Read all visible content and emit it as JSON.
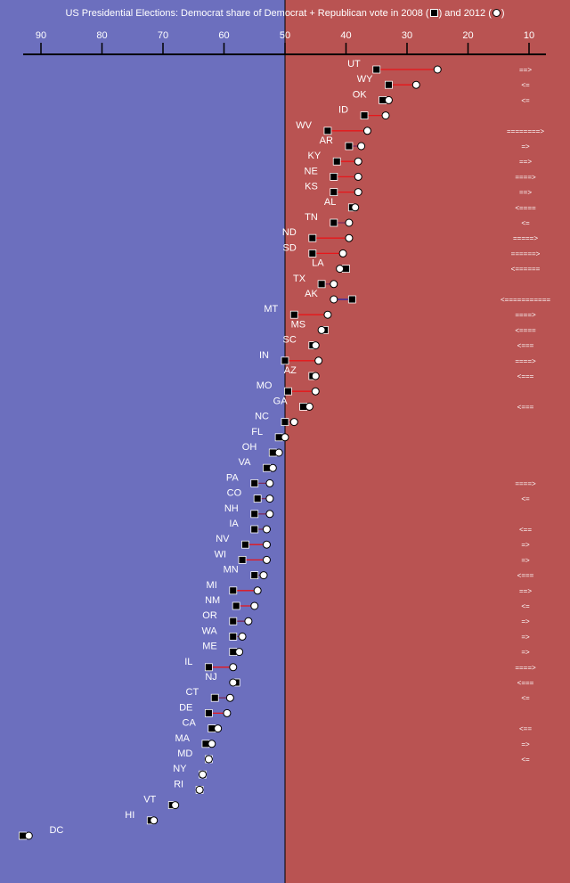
{
  "title": {
    "prefix": "US Presidential Elections: Democrat share of Democrat + Republican vote in 2008 (",
    "middle": ") and 2012 (",
    "suffix": ")"
  },
  "colors": {
    "dem_side": "#6c6fbe",
    "rep_side": "#b95352",
    "text": "#ffffff",
    "loss_line": "#e8161a",
    "gain_line": "#2121b0",
    "small_loss_line": "#7a2b5e"
  },
  "chart_data": {
    "type": "dumbbell",
    "xlabel": "",
    "ylabel": "",
    "xlim": [
      95,
      3
    ],
    "x_reversed": true,
    "divider_at": 50,
    "ticks": [
      90,
      80,
      70,
      60,
      50,
      40,
      30,
      20,
      10
    ],
    "series": [
      {
        "name": "2008",
        "marker": "square"
      },
      {
        "name": "2012",
        "marker": "circle"
      }
    ],
    "rows": [
      {
        "state": "UT",
        "v2008": 35.0,
        "v2012": 25.0,
        "note": "==>"
      },
      {
        "state": "WY",
        "v2008": 33.0,
        "v2012": 28.5,
        "note": "<="
      },
      {
        "state": "OK",
        "v2008": 34.0,
        "v2012": 33.0,
        "note": "<="
      },
      {
        "state": "ID",
        "v2008": 37.0,
        "v2012": 33.5,
        "note": ""
      },
      {
        "state": "WV",
        "v2008": 43.0,
        "v2012": 36.5,
        "note": "========>"
      },
      {
        "state": "AR",
        "v2008": 39.5,
        "v2012": 37.5,
        "note": "=>"
      },
      {
        "state": "KY",
        "v2008": 41.5,
        "v2012": 38.0,
        "note": "==>"
      },
      {
        "state": "NE",
        "v2008": 42.0,
        "v2012": 38.0,
        "note": "====>"
      },
      {
        "state": "KS",
        "v2008": 42.0,
        "v2012": 38.0,
        "note": "==>"
      },
      {
        "state": "AL",
        "v2008": 39.0,
        "v2012": 38.5,
        "note": "<===="
      },
      {
        "state": "TN",
        "v2008": 42.0,
        "v2012": 39.5,
        "note": "<="
      },
      {
        "state": "ND",
        "v2008": 45.5,
        "v2012": 39.5,
        "note": "=====>"
      },
      {
        "state": "SD",
        "v2008": 45.5,
        "v2012": 40.5,
        "note": "======>"
      },
      {
        "state": "LA",
        "v2008": 40.0,
        "v2012": 41.0,
        "note": "<======"
      },
      {
        "state": "TX",
        "v2008": 44.0,
        "v2012": 42.0,
        "note": ""
      },
      {
        "state": "AK",
        "v2008": 39.0,
        "v2012": 42.0,
        "note": "<==========="
      },
      {
        "state": "MT",
        "v2008": 48.5,
        "v2012": 43.0,
        "note": "====>"
      },
      {
        "state": "MS",
        "v2008": 43.5,
        "v2012": 44.0,
        "note": "<===="
      },
      {
        "state": "SC",
        "v2008": 45.5,
        "v2012": 45.0,
        "note": "<==="
      },
      {
        "state": "IN",
        "v2008": 50.0,
        "v2012": 44.5,
        "note": "====>"
      },
      {
        "state": "AZ",
        "v2008": 45.5,
        "v2012": 45.0,
        "note": "<==="
      },
      {
        "state": "MO",
        "v2008": 49.5,
        "v2012": 45.0,
        "note": ""
      },
      {
        "state": "GA",
        "v2008": 47.0,
        "v2012": 46.0,
        "note": "<==="
      },
      {
        "state": "NC",
        "v2008": 50.0,
        "v2012": 48.5,
        "note": ""
      },
      {
        "state": "FL",
        "v2008": 51.0,
        "v2012": 50.0,
        "note": ""
      },
      {
        "state": "OH",
        "v2008": 52.0,
        "v2012": 51.0,
        "note": ""
      },
      {
        "state": "VA",
        "v2008": 53.0,
        "v2012": 52.0,
        "note": ""
      },
      {
        "state": "PA",
        "v2008": 55.0,
        "v2012": 52.5,
        "note": "====>"
      },
      {
        "state": "CO",
        "v2008": 54.5,
        "v2012": 52.5,
        "note": "<="
      },
      {
        "state": "NH",
        "v2008": 55.0,
        "v2012": 52.5,
        "note": ""
      },
      {
        "state": "IA",
        "v2008": 55.0,
        "v2012": 53.0,
        "note": "<=="
      },
      {
        "state": "NV",
        "v2008": 56.5,
        "v2012": 53.0,
        "note": "=>"
      },
      {
        "state": "WI",
        "v2008": 57.0,
        "v2012": 53.0,
        "note": "=>"
      },
      {
        "state": "MN",
        "v2008": 55.0,
        "v2012": 53.5,
        "note": "<==="
      },
      {
        "state": "MI",
        "v2008": 58.5,
        "v2012": 54.5,
        "note": "==>"
      },
      {
        "state": "NM",
        "v2008": 58.0,
        "v2012": 55.0,
        "note": "<="
      },
      {
        "state": "OR",
        "v2008": 58.5,
        "v2012": 56.0,
        "note": "=>"
      },
      {
        "state": "WA",
        "v2008": 58.5,
        "v2012": 57.0,
        "note": "=>"
      },
      {
        "state": "ME",
        "v2008": 58.5,
        "v2012": 57.5,
        "note": "=>"
      },
      {
        "state": "IL",
        "v2008": 62.5,
        "v2012": 58.5,
        "note": "====>"
      },
      {
        "state": "NJ",
        "v2008": 58.0,
        "v2012": 58.5,
        "note": "<==="
      },
      {
        "state": "CT",
        "v2008": 61.5,
        "v2012": 59.0,
        "note": "<="
      },
      {
        "state": "DE",
        "v2008": 62.5,
        "v2012": 59.5,
        "note": ""
      },
      {
        "state": "CA",
        "v2008": 62.0,
        "v2012": 61.0,
        "note": "<=="
      },
      {
        "state": "MA",
        "v2008": 63.0,
        "v2012": 62.0,
        "note": "=>"
      },
      {
        "state": "MD",
        "v2008": 62.5,
        "v2012": 62.5,
        "note": "<="
      },
      {
        "state": "NY",
        "v2008": 63.5,
        "v2012": 63.5,
        "note": ""
      },
      {
        "state": "RI",
        "v2008": 64.0,
        "v2012": 64.0,
        "note": ""
      },
      {
        "state": "VT",
        "v2008": 68.5,
        "v2012": 68.0,
        "note": ""
      },
      {
        "state": "HI",
        "v2008": 72.0,
        "v2012": 71.5,
        "note": ""
      },
      {
        "state": "DC",
        "v2008": 93.0,
        "v2012": 92.0,
        "note": ""
      }
    ]
  }
}
